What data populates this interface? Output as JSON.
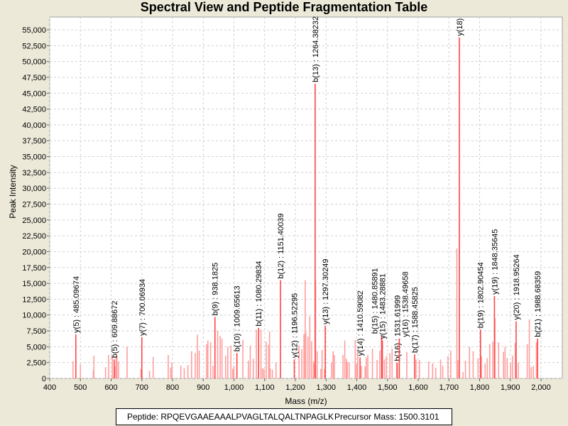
{
  "chart_data": {
    "type": "bar",
    "title": "Spectral View and Peptide Fragmentation Table",
    "xlabel": "Mass (m/z)",
    "ylabel": "Peak Intensity",
    "xlim": [
      400,
      2050
    ],
    "ylim": [
      0,
      56500
    ],
    "xticks": [
      400,
      500,
      600,
      700,
      800,
      900,
      1000,
      1100,
      1200,
      1300,
      1400,
      1500,
      1600,
      1700,
      1800,
      1900,
      2000
    ],
    "yticks": [
      0,
      2500,
      5000,
      7500,
      10000,
      12500,
      15000,
      17500,
      20000,
      22500,
      25000,
      27500,
      30000,
      32500,
      35000,
      37500,
      40000,
      42500,
      45000,
      47500,
      50000,
      52500,
      55000
    ],
    "grid": true,
    "annotated_peaks": [
      {
        "mz": 485.09674,
        "intensity": 6950,
        "label": "y(5) : 485.09674"
      },
      {
        "mz": 609.88672,
        "intensity": 3000,
        "label": "b(5) : 609.88672"
      },
      {
        "mz": 700.06934,
        "intensity": 6500,
        "label": "y(7) : 700.06934"
      },
      {
        "mz": 938.1825,
        "intensity": 9700,
        "label": "b(9) : 938.1825"
      },
      {
        "mz": 1009.65613,
        "intensity": 4000,
        "label": "b(10) : 1009.65613"
      },
      {
        "mz": 1080.29834,
        "intensity": 8000,
        "label": "b(11) : 1080.29834"
      },
      {
        "mz": 1151.40039,
        "intensity": 15500,
        "label": "b(12) : 1151.40039"
      },
      {
        "mz": 1196.52295,
        "intensity": 3000,
        "label": "y(12) : 1196.52295"
      },
      {
        "mz": 1264.38232,
        "intensity": 46500,
        "label": "b(13) : 1264.38232"
      },
      {
        "mz": 1297.30249,
        "intensity": 8300,
        "label": "y(13) : 1297.30249"
      },
      {
        "mz": 1410.59082,
        "intensity": 3300,
        "label": "y(14) : 1410.59082"
      },
      {
        "mz": 1480.85891,
        "intensity": 6800,
        "label": "b(15) : 1480.85891"
      },
      {
        "mz": 1483.28881,
        "intensity": 6000,
        "label": "y(15) : 1483.28881"
      },
      {
        "mz": 1531.61999,
        "intensity": 2500,
        "label": "b(16) : 1531.61999"
      },
      {
        "mz": 1538.49658,
        "intensity": 6300,
        "label": "y(16) : 1538.49658"
      },
      {
        "mz": 1588.45825,
        "intensity": 3800,
        "label": "b(17) : 1588.45825"
      },
      {
        "mz": 1734.0,
        "intensity": 53800,
        "label": "y(18)"
      },
      {
        "mz": 1802.90454,
        "intensity": 7700,
        "label": "b(19) : 1802.90454"
      },
      {
        "mz": 1848.35645,
        "intensity": 13000,
        "label": "y(19) : 1848.35645"
      },
      {
        "mz": 1918.95264,
        "intensity": 9000,
        "label": "y(20) : 1918.95264"
      },
      {
        "mz": 1988.68359,
        "intensity": 6300,
        "label": "b(21) : 1988.68359"
      }
    ],
    "other_peaks": [
      [
        476,
        2700
      ],
      [
        500,
        2200
      ],
      [
        542,
        1300
      ],
      [
        544,
        3600
      ],
      [
        582,
        1800
      ],
      [
        592,
        3700
      ],
      [
        604,
        3700
      ],
      [
        612,
        1900
      ],
      [
        616,
        3300
      ],
      [
        619,
        3500
      ],
      [
        624,
        2700
      ],
      [
        652,
        5000
      ],
      [
        697,
        1500
      ],
      [
        725,
        1200
      ],
      [
        737,
        3400
      ],
      [
        786,
        3700
      ],
      [
        794,
        1700
      ],
      [
        798,
        2500
      ],
      [
        827,
        2000
      ],
      [
        838,
        1600
      ],
      [
        850,
        2100
      ],
      [
        862,
        4300
      ],
      [
        874,
        4000
      ],
      [
        881,
        6900
      ],
      [
        887,
        4400
      ],
      [
        911,
        5400
      ],
      [
        915,
        6000
      ],
      [
        924,
        5700
      ],
      [
        932,
        2000
      ],
      [
        947,
        7500
      ],
      [
        955,
        6700
      ],
      [
        961,
        6300
      ],
      [
        973,
        3600
      ],
      [
        980,
        5000
      ],
      [
        990,
        5200
      ],
      [
        996,
        1500
      ],
      [
        1000,
        2000
      ],
      [
        1029,
        6100
      ],
      [
        1047,
        2800
      ],
      [
        1053,
        5200
      ],
      [
        1063,
        3100
      ],
      [
        1073,
        7700
      ],
      [
        1088,
        7700
      ],
      [
        1093,
        1600
      ],
      [
        1098,
        1500
      ],
      [
        1105,
        5800
      ],
      [
        1113,
        5300
      ],
      [
        1116,
        7400
      ],
      [
        1118,
        1600
      ],
      [
        1125,
        1400
      ],
      [
        1137,
        2500
      ],
      [
        1212,
        5200
      ],
      [
        1221,
        4600
      ],
      [
        1228,
        7000
      ],
      [
        1232,
        15500
      ],
      [
        1234,
        7300
      ],
      [
        1241,
        6600
      ],
      [
        1247,
        9800
      ],
      [
        1253,
        5900
      ],
      [
        1259,
        2700
      ],
      [
        1262,
        2300
      ],
      [
        1266,
        15500
      ],
      [
        1271,
        4300
      ],
      [
        1283,
        1500
      ],
      [
        1287,
        4500
      ],
      [
        1295,
        1500
      ],
      [
        1318,
        2500
      ],
      [
        1323,
        4300
      ],
      [
        1327,
        3700
      ],
      [
        1355,
        3700
      ],
      [
        1361,
        6000
      ],
      [
        1366,
        3100
      ],
      [
        1369,
        2600
      ],
      [
        1375,
        2500
      ],
      [
        1395,
        6100
      ],
      [
        1399,
        2300
      ],
      [
        1403,
        4400
      ],
      [
        1415,
        2000
      ],
      [
        1427,
        1900
      ],
      [
        1431,
        3300
      ],
      [
        1436,
        3700
      ],
      [
        1451,
        4700
      ],
      [
        1466,
        2900
      ],
      [
        1475,
        4400
      ],
      [
        1490,
        3000
      ],
      [
        1496,
        3500
      ],
      [
        1508,
        4000
      ],
      [
        1515,
        4700
      ],
      [
        1530,
        2400
      ],
      [
        1563,
        4200
      ],
      [
        1593,
        3000
      ],
      [
        1604,
        2900
      ],
      [
        1634,
        2700
      ],
      [
        1647,
        2400
      ],
      [
        1657,
        1700
      ],
      [
        1673,
        3000
      ],
      [
        1680,
        2000
      ],
      [
        1697,
        3500
      ],
      [
        1706,
        4400
      ],
      [
        1726,
        20500
      ],
      [
        1729,
        2900
      ],
      [
        1746,
        1000
      ],
      [
        1754,
        2800
      ],
      [
        1767,
        5000
      ],
      [
        1779,
        4300
      ],
      [
        1795,
        3200
      ],
      [
        1806,
        3500
      ],
      [
        1818,
        2300
      ],
      [
        1825,
        3200
      ],
      [
        1833,
        5400
      ],
      [
        1843,
        5800
      ],
      [
        1850,
        9500
      ],
      [
        1862,
        5700
      ],
      [
        1878,
        4200
      ],
      [
        1883,
        5000
      ],
      [
        1890,
        3200
      ],
      [
        1901,
        2400
      ],
      [
        1907,
        3600
      ],
      [
        1916,
        5600
      ],
      [
        1926,
        2500
      ],
      [
        1955,
        5400
      ],
      [
        1962,
        9300
      ],
      [
        1968,
        1800
      ],
      [
        1975,
        2000
      ],
      [
        1985,
        5700
      ]
    ]
  },
  "footer": {
    "peptide": "Peptide: RPQEVGAAEAAALPVAGLTALQALTNPAGLK",
    "precursor": "Precursor Mass: 1500.3101"
  },
  "colors": {
    "annotated": "#ff4444",
    "other": "#ff9e9e",
    "grid": "#d0d0d0"
  }
}
